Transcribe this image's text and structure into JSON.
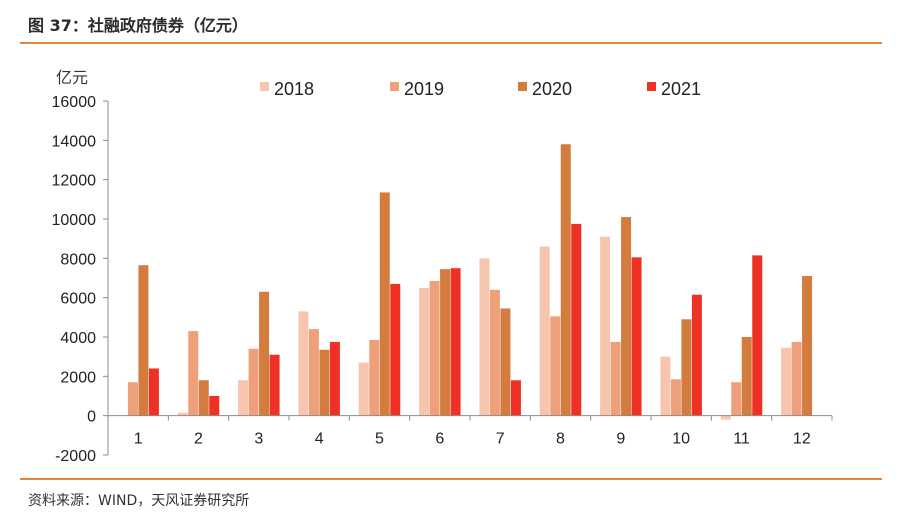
{
  "header": {
    "title": "图 37：社融政府债券（亿元）"
  },
  "footer": {
    "source": "资料来源：WIND，天风证券研究所"
  },
  "colors": {
    "rule": "#e4873a",
    "axis": "#8c8c8c"
  },
  "chart_data": {
    "type": "bar",
    "title": "",
    "ylabel": "亿元",
    "xlabel": "",
    "ylim": [
      -2000,
      16000
    ],
    "yticks": [
      -2000,
      0,
      2000,
      4000,
      6000,
      8000,
      10000,
      12000,
      14000,
      16000
    ],
    "grid": false,
    "legend": "top",
    "categories": [
      "1",
      "2",
      "3",
      "4",
      "5",
      "6",
      "7",
      "8",
      "9",
      "10",
      "11",
      "12"
    ],
    "series": [
      {
        "name": "2018",
        "color": "#f7c5ad",
        "values": [
          0,
          150,
          1800,
          5300,
          2700,
          6500,
          8000,
          8600,
          9100,
          3000,
          -200,
          3450
        ]
      },
      {
        "name": "2019",
        "color": "#eda07a",
        "values": [
          1700,
          4300,
          3400,
          4400,
          3850,
          6850,
          6400,
          5050,
          3750,
          1850,
          1700,
          3750
        ]
      },
      {
        "name": "2020",
        "color": "#d47b3e",
        "values": [
          7650,
          1800,
          6300,
          3350,
          11350,
          7450,
          5450,
          13800,
          10100,
          4900,
          4000,
          7100
        ]
      },
      {
        "name": "2021",
        "color": "#ee3124",
        "values": [
          2400,
          1000,
          3100,
          3750,
          6700,
          7500,
          1800,
          9750,
          8050,
          6150,
          8150,
          null
        ]
      }
    ]
  }
}
